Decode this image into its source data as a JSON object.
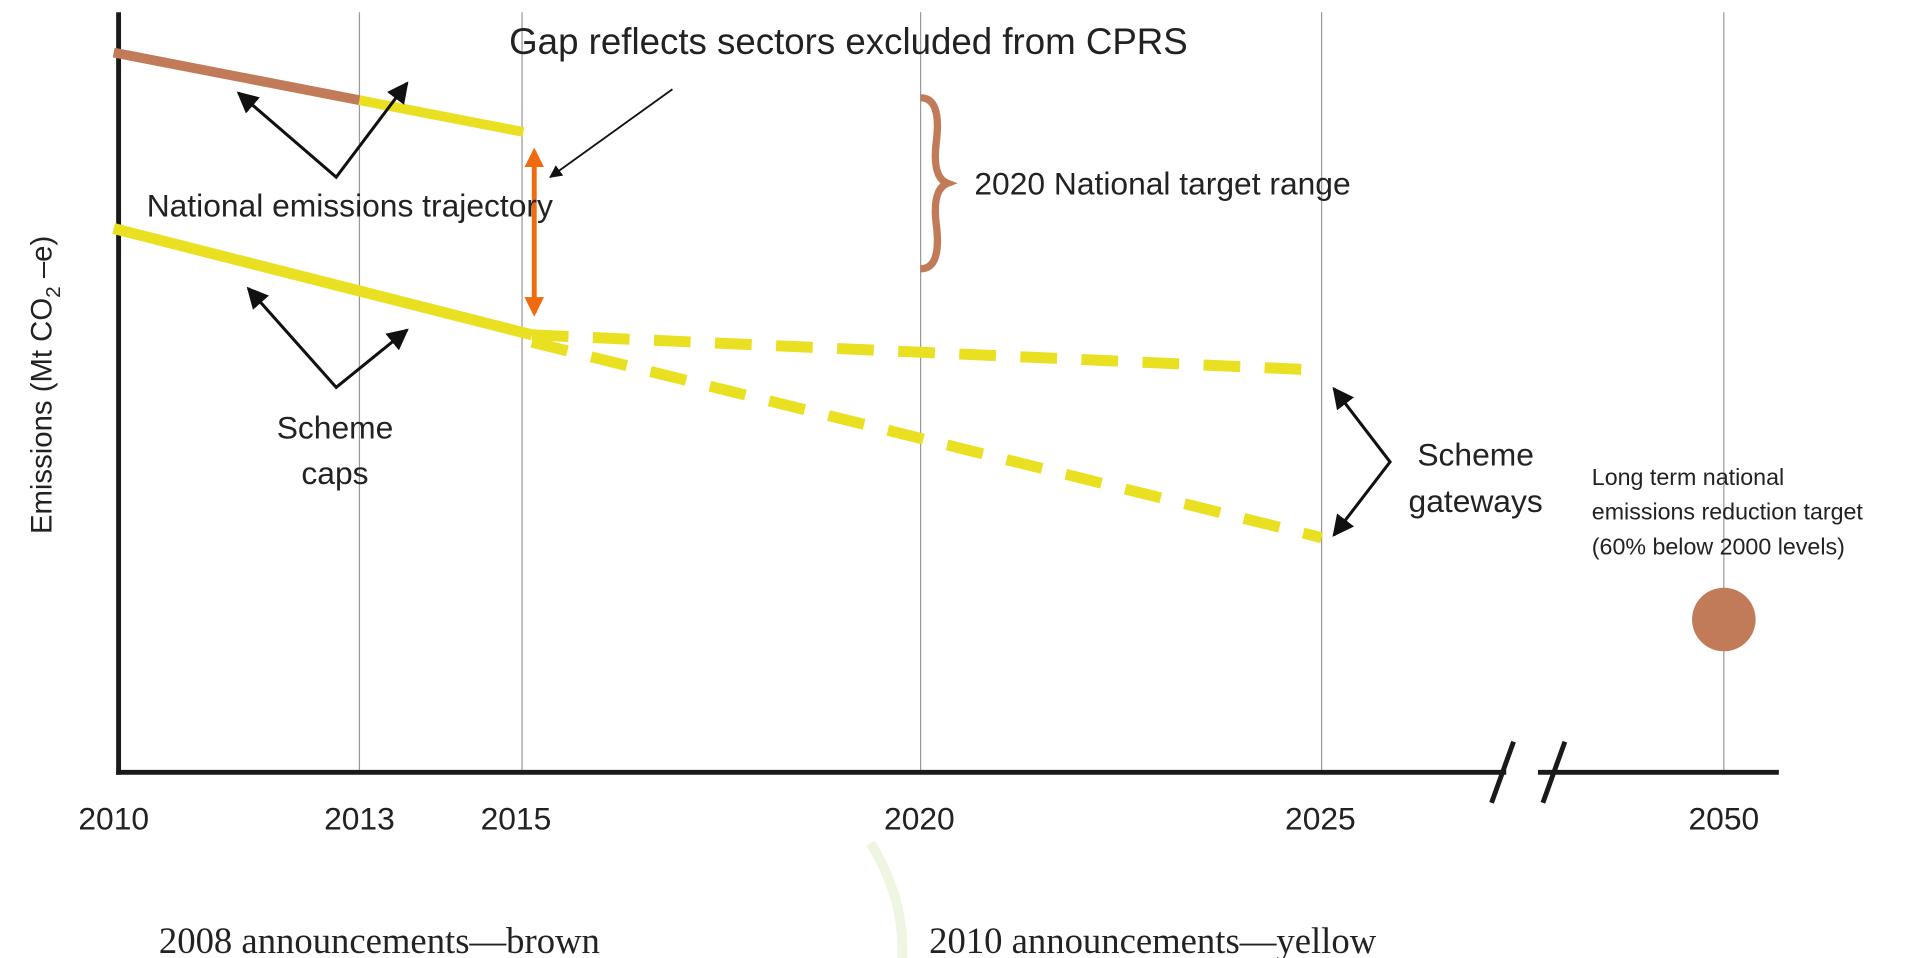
{
  "diagram": {
    "callout": "Gap reflects sectors excluded from CPRS",
    "y_axis_label": {
      "main": "Emissions (Mt CO",
      "sub": "2",
      "tail": " –e)"
    },
    "x_labels": [
      "2010",
      "2013",
      "2015",
      "2020",
      "2025",
      "2050"
    ],
    "annotations": {
      "trajectory": "National emissions trajectory",
      "caps": [
        "Scheme",
        "caps"
      ],
      "target_range": "2020 National target range",
      "gateways": [
        "Scheme",
        "gateways"
      ],
      "long_term": [
        "Long term national",
        "emissions reduction target",
        "(60% below 2000 levels)"
      ]
    },
    "notes": [
      "2008 announcements—brown",
      "2010 announcements—yellow"
    ]
  }
}
